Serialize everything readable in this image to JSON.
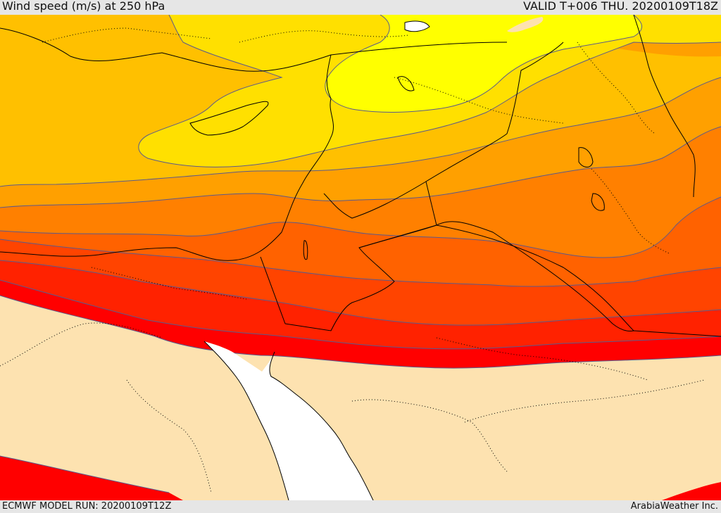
{
  "header": {
    "title": "Wind speed (m/s) at 250 hPa",
    "valid_time": "VALID T+006 THU. 20200109T18Z"
  },
  "footer": {
    "model_run": "ECMWF MODEL RUN: 20200109T12Z",
    "credit": "ArabiaWeather Inc."
  },
  "map": {
    "variable": "wind speed",
    "level_hpa": 250,
    "units": "m/s",
    "colors": {
      "band_0": "#fde2b0",
      "band_1": "#ffff00",
      "band_2": "#ffe000",
      "band_3": "#ffc000",
      "band_4": "#ffa000",
      "band_5": "#ff8000",
      "band_6": "#ff6200",
      "band_7": "#ff4400",
      "band_8": "#ff2200",
      "band_9": "#ff0000",
      "sea": "#ffffff",
      "coastline": "#000000",
      "contour": "#5a5a8c"
    }
  }
}
